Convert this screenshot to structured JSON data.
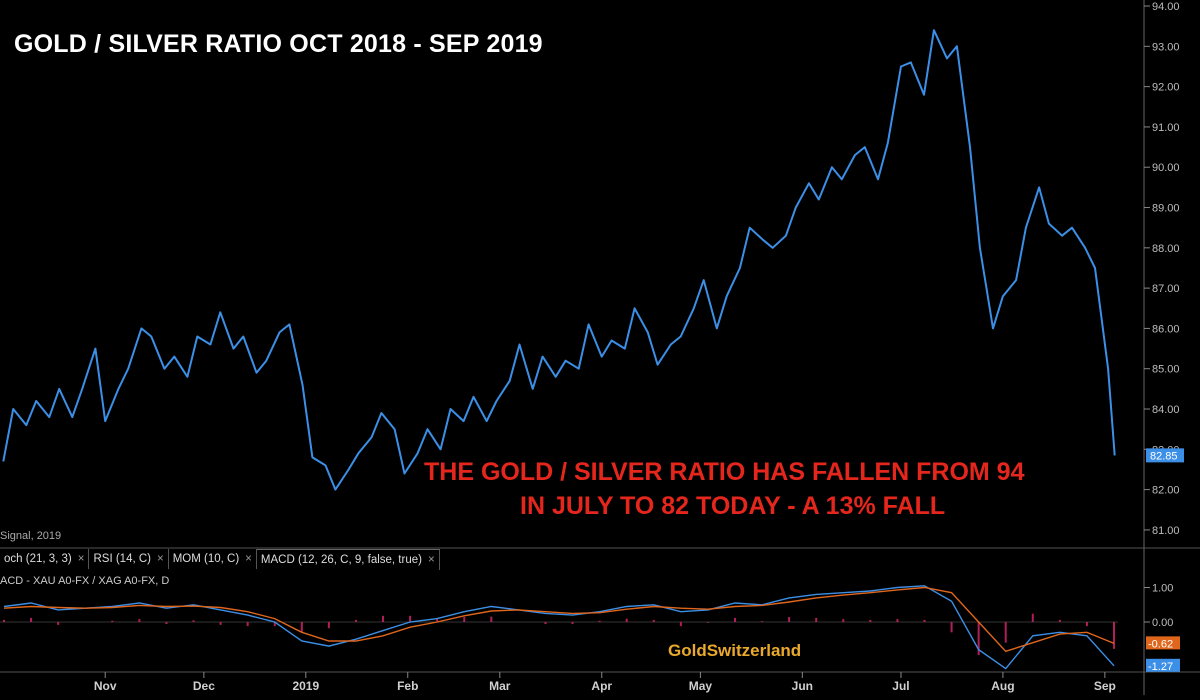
{
  "title": "GOLD / SILVER RATIO OCT 2018 - SEP 2019",
  "annotation": {
    "line1": "THE GOLD / SILVER RATIO HAS FALLEN FROM 94",
    "line2": "IN JULY TO 82  TODAY - A 13% FALL"
  },
  "brand": "GoldSwitzerland",
  "signal_label": "Signal, 2019",
  "tabs": [
    {
      "label": "och (21, 3, 3)"
    },
    {
      "label": "RSI (14, C)"
    },
    {
      "label": "MOM (10, C)"
    },
    {
      "label": "MACD (12, 26, C, 9, false, true)"
    }
  ],
  "tab_close_glyph": "×",
  "macd_label": "ACD - XAU A0-FX / XAG A0-FX, D",
  "colors": {
    "ratio_line": "#3c8fe6",
    "macd_line": "#3c8fe6",
    "signal_line": "#e0661c",
    "histogram": "#d0246a",
    "annotation": "#e5261d",
    "brand": "#e8a92c",
    "last_price_badge": "#3c8fe6",
    "macd_badge": "#e0661c"
  },
  "chart_data": [
    {
      "type": "line",
      "title": "GOLD / SILVER RATIO OCT 2018 - SEP 2019",
      "x_ticks": [
        "Nov",
        "Dec",
        "2019",
        "Feb",
        "Mar",
        "Apr",
        "May",
        "Jun",
        "Jul",
        "Aug",
        "Sep"
      ],
      "y_ticks": [
        "94.00",
        "93.00",
        "92.00",
        "91.00",
        "90.00",
        "89.00",
        "88.00",
        "87.00",
        "86.00",
        "85.00",
        "84.00",
        "83.00",
        "82.00",
        "81.00"
      ],
      "ylim": [
        80.7,
        94.1
      ],
      "axis_position": "right",
      "last_value_label": "82.85",
      "series": [
        {
          "x": [
            "2018-10-01",
            "2018-10-04",
            "2018-10-08",
            "2018-10-11",
            "2018-10-15",
            "2018-10-18",
            "2018-10-22",
            "2018-10-25",
            "2018-10-29",
            "2018-11-01",
            "2018-11-05",
            "2018-11-08",
            "2018-11-12",
            "2018-11-15",
            "2018-11-19",
            "2018-11-22",
            "2018-11-26",
            "2018-11-29",
            "2018-12-03",
            "2018-12-06",
            "2018-12-10",
            "2018-12-13",
            "2018-12-17",
            "2018-12-20",
            "2018-12-24",
            "2018-12-27",
            "2018-12-31",
            "2019-01-03",
            "2019-01-07",
            "2019-01-10",
            "2019-01-14",
            "2019-01-17",
            "2019-01-21",
            "2019-01-24",
            "2019-01-28",
            "2019-01-31",
            "2019-02-04",
            "2019-02-07",
            "2019-02-11",
            "2019-02-14",
            "2019-02-18",
            "2019-02-21",
            "2019-02-25",
            "2019-02-28",
            "2019-03-04",
            "2019-03-07",
            "2019-03-11",
            "2019-03-14",
            "2019-03-18",
            "2019-03-21",
            "2019-03-25",
            "2019-03-28",
            "2019-04-01",
            "2019-04-04",
            "2019-04-08",
            "2019-04-11",
            "2019-04-15",
            "2019-04-18",
            "2019-04-22",
            "2019-04-25",
            "2019-04-29",
            "2019-05-02",
            "2019-05-06",
            "2019-05-09",
            "2019-05-13",
            "2019-05-16",
            "2019-05-20",
            "2019-05-23",
            "2019-05-27",
            "2019-05-30",
            "2019-06-03",
            "2019-06-06",
            "2019-06-10",
            "2019-06-13",
            "2019-06-17",
            "2019-06-20",
            "2019-06-24",
            "2019-06-27",
            "2019-07-01",
            "2019-07-04",
            "2019-07-08",
            "2019-07-11",
            "2019-07-15",
            "2019-07-18",
            "2019-07-22",
            "2019-07-25",
            "2019-07-29",
            "2019-08-01",
            "2019-08-05",
            "2019-08-08",
            "2019-08-12",
            "2019-08-15",
            "2019-08-19",
            "2019-08-22",
            "2019-08-26",
            "2019-08-29",
            "2019-09-02",
            "2019-09-04"
          ],
          "values": [
            82.7,
            84.0,
            83.6,
            84.2,
            83.8,
            84.5,
            83.8,
            84.5,
            85.5,
            83.7,
            84.5,
            85.0,
            86.0,
            85.8,
            85.0,
            85.3,
            84.8,
            85.8,
            85.6,
            86.4,
            85.5,
            85.8,
            84.9,
            85.2,
            85.9,
            86.1,
            84.6,
            82.8,
            82.6,
            82.0,
            82.5,
            82.9,
            83.3,
            83.9,
            83.5,
            82.4,
            82.9,
            83.5,
            83.0,
            84.0,
            83.7,
            84.3,
            83.7,
            84.2,
            84.7,
            85.6,
            84.5,
            85.3,
            84.8,
            85.2,
            85.0,
            86.1,
            85.3,
            85.7,
            85.5,
            86.5,
            85.9,
            85.1,
            85.6,
            85.8,
            86.5,
            87.2,
            86.0,
            86.8,
            87.5,
            88.5,
            88.2,
            88.0,
            88.3,
            89.0,
            89.6,
            89.2,
            90.0,
            89.7,
            90.3,
            90.5,
            89.7,
            90.6,
            92.5,
            92.6,
            91.8,
            93.4,
            92.7,
            93.0,
            90.5,
            88.0,
            86.0,
            86.8,
            87.2,
            88.5,
            89.5,
            88.6,
            88.3,
            88.5,
            88.0,
            87.5,
            85.0,
            82.85
          ]
        }
      ]
    },
    {
      "type": "line",
      "title": "MACD (12, 26, C, 9, false, true)",
      "y_ticks": [
        "1.00",
        "0.00"
      ],
      "ylim": [
        -1.45,
        1.45
      ],
      "last_macd_label": "-1.27",
      "last_signal_label": "-0.62",
      "series": [
        {
          "name": "MACD",
          "values": [
            0.45,
            0.55,
            0.35,
            0.4,
            0.45,
            0.55,
            0.4,
            0.5,
            0.35,
            0.2,
            0.0,
            -0.55,
            -0.7,
            -0.5,
            -0.25,
            0.0,
            0.1,
            0.3,
            0.45,
            0.35,
            0.25,
            0.2,
            0.3,
            0.45,
            0.5,
            0.3,
            0.35,
            0.55,
            0.5,
            0.7,
            0.8,
            0.85,
            0.9,
            1.0,
            1.05,
            0.6,
            -0.8,
            -1.35,
            -0.4,
            -0.3,
            -0.4,
            -1.27
          ]
        },
        {
          "name": "Signal",
          "values": [
            0.4,
            0.45,
            0.42,
            0.4,
            0.42,
            0.48,
            0.45,
            0.46,
            0.42,
            0.3,
            0.1,
            -0.3,
            -0.55,
            -0.55,
            -0.4,
            -0.15,
            0.0,
            0.18,
            0.32,
            0.35,
            0.3,
            0.25,
            0.27,
            0.37,
            0.45,
            0.4,
            0.37,
            0.45,
            0.48,
            0.58,
            0.7,
            0.78,
            0.85,
            0.93,
            1.0,
            0.85,
            0.0,
            -0.85,
            -0.6,
            -0.35,
            -0.3,
            -0.62
          ]
        }
      ]
    }
  ]
}
